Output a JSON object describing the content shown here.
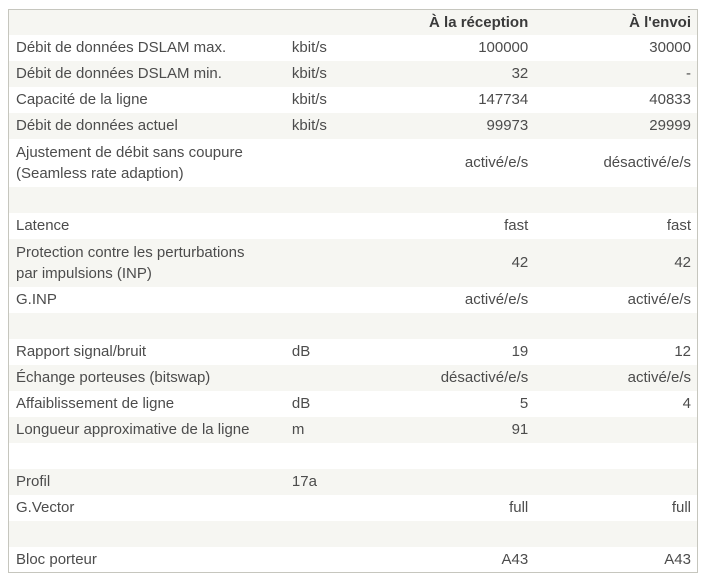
{
  "table": {
    "columns": {
      "reception": "À la réception",
      "envoi": "À l'envoi"
    },
    "colors": {
      "stripe": "#f6f6f2",
      "border": "#c6c6be",
      "text": "#4c4c4c",
      "header_text": "#3a3a3a"
    },
    "rows": [
      {
        "label": "Débit de données DSLAM max.",
        "unit": "kbit/s",
        "reception": "100000",
        "envoi": "30000"
      },
      {
        "label": "Débit de données DSLAM min.",
        "unit": "kbit/s",
        "reception": "32",
        "envoi": "-"
      },
      {
        "label": "Capacité de la ligne",
        "unit": "kbit/s",
        "reception": "147734",
        "envoi": "40833"
      },
      {
        "label": "Débit de données actuel",
        "unit": "kbit/s",
        "reception": "99973",
        "envoi": "29999"
      },
      {
        "label": "Ajustement de débit sans coupure",
        "label_line2": "(Seamless rate adaption)",
        "unit": "",
        "reception": "activé/e/s",
        "envoi": "désactivé/e/s"
      },
      {
        "spacer": true,
        "label": "",
        "unit": "",
        "reception": "",
        "envoi": ""
      },
      {
        "label": "Latence",
        "unit": "",
        "reception": "fast",
        "envoi": "fast"
      },
      {
        "label": "Protection contre les perturbations",
        "label_line2": "par impulsions (INP)",
        "unit": "",
        "reception": "42",
        "envoi": "42"
      },
      {
        "label": "G.INP",
        "unit": "",
        "reception": "activé/e/s",
        "envoi": "activé/e/s"
      },
      {
        "spacer": true,
        "label": "",
        "unit": "",
        "reception": "",
        "envoi": ""
      },
      {
        "label": "Rapport signal/bruit",
        "unit": "dB",
        "reception": "19",
        "envoi": "12"
      },
      {
        "label": "Échange porteuses (bitswap)",
        "unit": "",
        "reception": "désactivé/e/s",
        "envoi": "activé/e/s"
      },
      {
        "label": "Affaiblissement de ligne",
        "unit": "dB",
        "reception": "5",
        "envoi": "4"
      },
      {
        "label": "Longueur approximative de la ligne",
        "unit": "m",
        "reception": "91",
        "envoi": ""
      },
      {
        "spacer": true,
        "label": "",
        "unit": "",
        "reception": "",
        "envoi": ""
      },
      {
        "label": "Profil",
        "unit": "17a",
        "reception": "",
        "envoi": ""
      },
      {
        "label": "G.Vector",
        "unit": "",
        "reception": "full",
        "envoi": "full"
      },
      {
        "spacer": true,
        "label": "",
        "unit": "",
        "reception": "",
        "envoi": ""
      },
      {
        "label": "Bloc porteur",
        "unit": "",
        "reception": "A43",
        "envoi": "A43"
      }
    ]
  }
}
